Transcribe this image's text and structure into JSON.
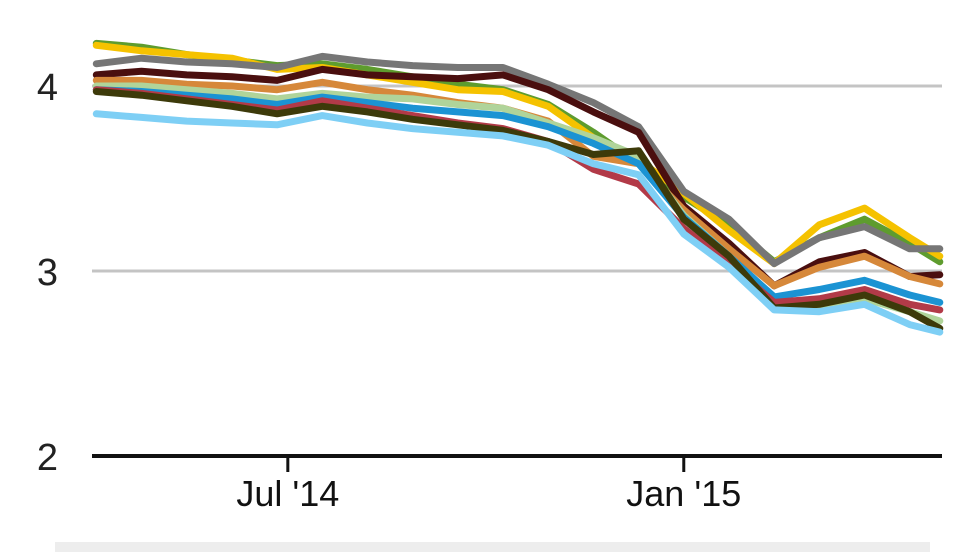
{
  "chart_data": {
    "type": "line",
    "xlabel": "",
    "ylabel": "",
    "ylim": [
      2,
      4.35
    ],
    "yticks": [
      2,
      3,
      4
    ],
    "xticks": [
      {
        "value": "2014-07-01",
        "label": "Jul '14"
      },
      {
        "value": "2015-01-01",
        "label": "Jan '15"
      }
    ],
    "xlim": [
      "2014-04-01",
      "2015-05-01"
    ],
    "grid": true,
    "x": [
      "2014-04-03",
      "2014-04-24",
      "2014-05-15",
      "2014-06-05",
      "2014-06-26",
      "2014-07-17",
      "2014-08-07",
      "2014-08-28",
      "2014-09-18",
      "2014-10-09",
      "2014-10-30",
      "2014-11-20",
      "2014-12-11",
      "2015-01-01",
      "2015-01-22",
      "2015-02-12",
      "2015-03-05",
      "2015-03-26",
      "2015-04-16",
      "2015-04-30"
    ],
    "series": [
      {
        "color": "#5e9c2e",
        "values": [
          4.23,
          4.21,
          4.17,
          4.14,
          4.11,
          4.12,
          4.09,
          4.05,
          4.01,
          3.98,
          3.9,
          3.75,
          3.58,
          3.4,
          3.25,
          3.05,
          3.18,
          3.28,
          3.15,
          3.05
        ]
      },
      {
        "color": "#f5c200",
        "values": [
          4.22,
          4.19,
          4.17,
          4.15,
          4.09,
          4.1,
          4.06,
          4.02,
          3.98,
          3.97,
          3.89,
          3.72,
          3.6,
          3.42,
          3.22,
          3.04,
          3.25,
          3.34,
          3.18,
          3.08
        ]
      },
      {
        "color": "#767676",
        "values": [
          4.12,
          4.15,
          4.13,
          4.12,
          4.1,
          4.16,
          4.13,
          4.11,
          4.1,
          4.1,
          4.01,
          3.91,
          3.78,
          3.43,
          3.28,
          3.04,
          3.18,
          3.24,
          3.12,
          3.12
        ]
      },
      {
        "color": "#4a0f0f",
        "values": [
          4.06,
          4.08,
          4.06,
          4.05,
          4.03,
          4.09,
          4.06,
          4.05,
          4.04,
          4.06,
          3.98,
          3.86,
          3.75,
          3.35,
          3.15,
          2.92,
          3.05,
          3.1,
          2.97,
          2.98
        ]
      },
      {
        "color": "#d6883a",
        "values": [
          4.03,
          4.03,
          4.01,
          4.0,
          3.98,
          4.02,
          3.98,
          3.95,
          3.91,
          3.88,
          3.81,
          3.62,
          3.58,
          3.33,
          3.12,
          2.92,
          3.02,
          3.08,
          2.97,
          2.93
        ]
      },
      {
        "color": "#b0d49a",
        "values": [
          4.0,
          4.0,
          3.98,
          3.96,
          3.93,
          3.96,
          3.94,
          3.93,
          3.9,
          3.88,
          3.8,
          3.72,
          3.62,
          3.3,
          3.08,
          2.85,
          2.8,
          2.85,
          2.78,
          2.73
        ]
      },
      {
        "color": "#1b93d3",
        "values": [
          3.98,
          3.97,
          3.95,
          3.93,
          3.9,
          3.94,
          3.91,
          3.88,
          3.86,
          3.84,
          3.78,
          3.69,
          3.58,
          3.29,
          3.08,
          2.86,
          2.9,
          2.95,
          2.87,
          2.83
        ]
      },
      {
        "color": "#b23a48",
        "values": [
          3.98,
          3.96,
          3.93,
          3.9,
          3.87,
          3.92,
          3.88,
          3.84,
          3.8,
          3.77,
          3.7,
          3.55,
          3.47,
          3.23,
          3.04,
          2.83,
          2.85,
          2.9,
          2.82,
          2.79
        ]
      },
      {
        "color": "#3d3a0a",
        "values": [
          3.97,
          3.95,
          3.92,
          3.89,
          3.85,
          3.89,
          3.86,
          3.82,
          3.79,
          3.76,
          3.7,
          3.63,
          3.65,
          3.28,
          3.08,
          2.8,
          2.82,
          2.87,
          2.78,
          2.69
        ]
      },
      {
        "color": "#7ecff5",
        "values": [
          3.85,
          3.83,
          3.81,
          3.8,
          3.79,
          3.84,
          3.8,
          3.77,
          3.75,
          3.73,
          3.68,
          3.58,
          3.52,
          3.2,
          3.02,
          2.79,
          2.78,
          2.82,
          2.71,
          2.67
        ]
      }
    ]
  }
}
